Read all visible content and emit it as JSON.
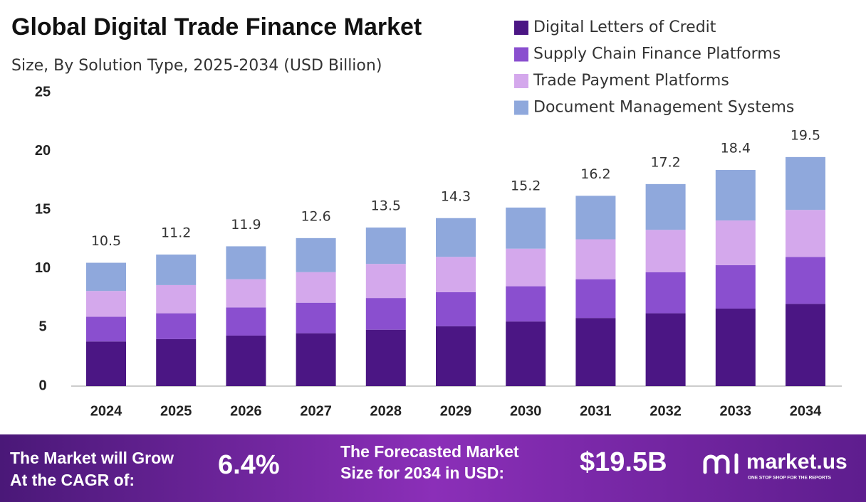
{
  "chart_data": {
    "type": "stacked_bar",
    "title": "Global Digital Trade Finance Market",
    "subtitle": "Size, By Solution Type, 2025-2034 (USD Billion)",
    "categories": [
      "2024",
      "2025",
      "2026",
      "2027",
      "2028",
      "2029",
      "2030",
      "2031",
      "2032",
      "2033",
      "2034"
    ],
    "series": [
      {
        "name": "Digital Letters of Credit",
        "color": "#4b1684",
        "values": [
          3.8,
          4.0,
          4.3,
          4.5,
          4.8,
          5.1,
          5.5,
          5.8,
          6.2,
          6.6,
          7.0
        ]
      },
      {
        "name": "Supply Chain Finance Platforms",
        "color": "#8a4fcf",
        "values": [
          2.1,
          2.2,
          2.4,
          2.6,
          2.7,
          2.9,
          3.0,
          3.3,
          3.5,
          3.7,
          4.0
        ]
      },
      {
        "name": "Trade Payment Platforms",
        "color": "#d4a8ec",
        "values": [
          2.2,
          2.4,
          2.4,
          2.6,
          2.9,
          3.0,
          3.2,
          3.4,
          3.6,
          3.8,
          4.0
        ]
      },
      {
        "name": "Document Management Systems",
        "color": "#8fa8dc",
        "values": [
          2.4,
          2.6,
          2.8,
          2.9,
          3.1,
          3.3,
          3.5,
          3.7,
          3.9,
          4.3,
          4.5
        ]
      }
    ],
    "totals": [
      10.5,
      11.2,
      11.9,
      12.6,
      13.5,
      14.3,
      15.2,
      16.2,
      17.2,
      18.4,
      19.5
    ],
    "ylim": [
      0,
      25
    ],
    "yticks": [
      0,
      5,
      10,
      15,
      20,
      25
    ],
    "grid": false
  },
  "footer": {
    "cagr_label_1": "The Market will Grow",
    "cagr_label_2": "At the CAGR of:",
    "cagr_value": "6.4%",
    "forecast_label_1": "The Forecasted Market",
    "forecast_label_2": "Size for 2034 in USD:",
    "forecast_value": "$19.5B",
    "brand": "market.us",
    "tagline": "ONE STOP SHOP FOR THE REPORTS"
  }
}
